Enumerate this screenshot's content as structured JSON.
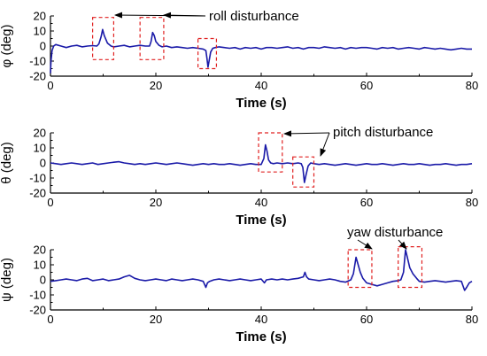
{
  "chart_data": [
    {
      "type": "line",
      "xlabel": "Time (s)",
      "ylabel": "φ (deg)",
      "xlim": [
        0,
        80
      ],
      "ylim": [
        -20,
        20
      ],
      "xticks": [
        0,
        20,
        40,
        60,
        80
      ],
      "yticks": [
        -20,
        -10,
        0,
        10,
        20
      ],
      "line_color": "#1a1aa8",
      "annotation": {
        "text": "roll disturbance",
        "box_color": "#e02020"
      },
      "highlight_boxes": [
        [
          8,
          12,
          -9,
          19
        ],
        [
          17,
          21.5,
          -9,
          19
        ],
        [
          28,
          31.5,
          -15,
          5
        ]
      ],
      "series": [
        {
          "x": [
            0,
            0.1,
            0.3,
            0.6,
            1,
            2,
            3,
            4,
            5,
            6,
            7,
            8,
            8.8,
            9.2,
            9.6,
            9.9,
            10.2,
            10.8,
            11.5,
            12,
            13,
            14,
            15,
            16,
            17,
            18,
            18.8,
            19.1,
            19.4,
            19.7,
            20,
            20.6,
            21.2,
            22,
            23,
            24,
            25,
            26,
            27,
            28,
            29,
            29.5,
            29.7,
            29.9,
            30.1,
            30.4,
            30.8,
            31.3,
            32,
            33,
            34,
            35,
            36,
            37,
            38,
            39,
            40,
            41,
            42,
            43,
            44,
            45,
            46,
            47,
            48,
            49,
            50,
            51,
            52,
            53,
            54,
            55,
            56,
            57,
            58,
            59,
            60,
            61,
            62,
            63,
            64,
            65,
            66,
            67,
            68,
            69,
            70,
            71,
            72,
            73,
            74,
            75,
            76,
            77,
            78,
            79,
            80
          ],
          "y": [
            -18,
            -10,
            -3,
            0,
            1,
            0,
            -1,
            0,
            0.5,
            -0.5,
            0,
            0.3,
            0,
            1.5,
            6,
            11,
            7,
            2,
            0,
            -0.5,
            0,
            0.5,
            -0.5,
            0,
            0.5,
            0,
            0,
            3,
            9,
            7,
            3,
            0.5,
            -0.5,
            0,
            -1,
            -0.5,
            -1,
            -1.5,
            -1,
            -1.5,
            -2,
            -3,
            -8,
            -14,
            -10,
            -4,
            -1.5,
            -1,
            -0.5,
            -1,
            -1.5,
            -1,
            -2,
            -1,
            -1.5,
            -1,
            -2,
            -1,
            -1,
            -1.5,
            -1,
            -0.5,
            -1.5,
            -1,
            -2,
            -1,
            -1,
            -1.5,
            -0.5,
            -1,
            -1.5,
            -1,
            -2,
            -1,
            -1.5,
            -1,
            -1,
            -1.5,
            -2,
            -1,
            -1.5,
            -1,
            -2,
            -1.5,
            -1,
            -1.5,
            -2,
            -1,
            -1.5,
            -2,
            -1.5,
            -2,
            -2.5,
            -2,
            -1.5,
            -2,
            -2
          ]
        }
      ]
    },
    {
      "type": "line",
      "xlabel": "Time (s)",
      "ylabel": "θ (deg)",
      "xlim": [
        0,
        80
      ],
      "ylim": [
        -20,
        20
      ],
      "xticks": [
        0,
        20,
        40,
        60,
        80
      ],
      "yticks": [
        -20,
        -10,
        0,
        10,
        20
      ],
      "line_color": "#1a1aa8",
      "annotation": {
        "text": "pitch disturbance",
        "box_color": "#e02020"
      },
      "highlight_boxes": [
        [
          39.5,
          44,
          -6,
          20
        ],
        [
          46,
          50,
          -16,
          4
        ]
      ],
      "series": [
        {
          "x": [
            0,
            1,
            2,
            3,
            4,
            5,
            6,
            7,
            8,
            9,
            10,
            11,
            12,
            13,
            14,
            15,
            16,
            17,
            18,
            19,
            20,
            21,
            22,
            23,
            24,
            25,
            26,
            27,
            28,
            29,
            30,
            31,
            32,
            33,
            34,
            35,
            36,
            37,
            38,
            39,
            40,
            40.5,
            40.8,
            41.1,
            41.4,
            41.8,
            42.3,
            43,
            44,
            45,
            46,
            47,
            47.6,
            47.9,
            48.2,
            48.5,
            48.9,
            49.4,
            50,
            51,
            52,
            53,
            54,
            55,
            56,
            57,
            58,
            59,
            60,
            61,
            62,
            63,
            64,
            65,
            66,
            67,
            68,
            69,
            70,
            71,
            72,
            73,
            74,
            75,
            76,
            77,
            78,
            79,
            80
          ],
          "y": [
            0,
            -0.5,
            -1,
            -0.5,
            0,
            -0.5,
            -1,
            -0.5,
            0,
            -1,
            -0.5,
            0,
            0.5,
            0.8,
            0,
            -0.5,
            -1,
            -0.5,
            -1,
            -0.5,
            0,
            -0.5,
            -1,
            -0.5,
            0,
            -0.5,
            -1,
            -1.5,
            -1,
            -0.5,
            -1,
            -0.5,
            -1,
            -1,
            -0.5,
            -1,
            -1.5,
            -1,
            -0.5,
            -1,
            -1,
            3,
            12,
            8,
            2,
            0,
            -0.5,
            0,
            -0.5,
            0,
            -0.5,
            0,
            -0.5,
            -3,
            -13,
            -8,
            -2,
            0,
            -0.5,
            -1,
            -0.5,
            -1,
            -1.5,
            -1,
            -0.5,
            -1,
            -1.5,
            -1,
            -0.5,
            -1,
            -1,
            -0.5,
            -1,
            -1.5,
            -1,
            -0.5,
            -1,
            -1,
            -0.5,
            -1,
            -1.5,
            -1,
            -1,
            -0.5,
            -1,
            -1.5,
            -1,
            -1,
            -0.5
          ]
        }
      ]
    },
    {
      "type": "line",
      "xlabel": "Time (s)",
      "ylabel": "ψ (deg)",
      "xlim": [
        0,
        80
      ],
      "ylim": [
        -20,
        20
      ],
      "xticks": [
        0,
        20,
        40,
        60,
        80
      ],
      "yticks": [
        -20,
        -10,
        0,
        10,
        20
      ],
      "line_color": "#1a1aa8",
      "annotation": {
        "text": "yaw disturbance",
        "box_color": "#e02020"
      },
      "highlight_boxes": [
        [
          56.5,
          61,
          -5,
          20
        ],
        [
          66,
          70.5,
          -5,
          22
        ]
      ],
      "series": [
        {
          "x": [
            0,
            1,
            2,
            3,
            4,
            5,
            6,
            7,
            8,
            9,
            10,
            11,
            12,
            13,
            14,
            15,
            16,
            17,
            18,
            19,
            20,
            21,
            22,
            23,
            24,
            25,
            26,
            27,
            28,
            29,
            29.5,
            29.8,
            30.2,
            31,
            32,
            33,
            34,
            35,
            36,
            37,
            38,
            39,
            40,
            40.6,
            41,
            42,
            43,
            44,
            45,
            46,
            47,
            48,
            48.3,
            48.6,
            49,
            50,
            51,
            52,
            53,
            54,
            55,
            56,
            57,
            57.5,
            58,
            58.4,
            58.8,
            59.3,
            60,
            61,
            62,
            63,
            64,
            65,
            66,
            66.5,
            67,
            67.4,
            67.8,
            68.2,
            68.8,
            69.5,
            70,
            71,
            72,
            73,
            74,
            75,
            76,
            77,
            78,
            78.6,
            79,
            79.5,
            80
          ],
          "y": [
            -1,
            -0.5,
            0,
            0.5,
            0,
            -0.5,
            0.5,
            1,
            -0.5,
            0,
            0.5,
            -0.5,
            0,
            0.5,
            2,
            3,
            1,
            0,
            -0.5,
            0,
            0.5,
            0,
            -0.5,
            0.5,
            0,
            -0.5,
            0,
            0.5,
            0,
            -1,
            -5,
            -2,
            -1,
            0,
            0.5,
            0,
            -0.5,
            0,
            0.5,
            0,
            -0.5,
            0,
            0.5,
            -2,
            0,
            0.5,
            0,
            0.5,
            0,
            0.5,
            1,
            2,
            5,
            2,
            0.5,
            0,
            -0.5,
            0,
            0.5,
            0,
            -1,
            -1.5,
            0,
            4,
            15,
            10,
            5,
            1,
            -2,
            -3,
            -4,
            -3,
            -2,
            -1,
            -0.5,
            0,
            5,
            20,
            14,
            8,
            4,
            1,
            -1,
            -1.5,
            -1,
            -0.5,
            -1,
            -1.5,
            -1,
            -0.5,
            -1,
            -7,
            -5,
            -2,
            -1
          ]
        }
      ]
    }
  ]
}
